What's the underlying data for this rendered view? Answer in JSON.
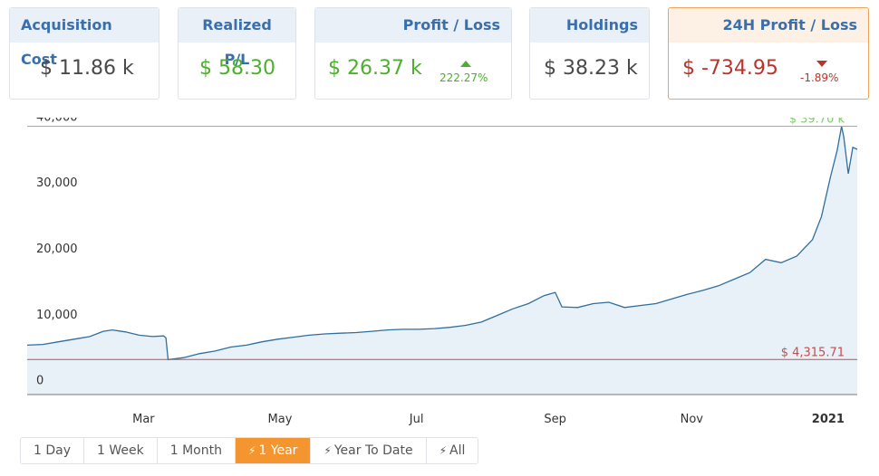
{
  "cards": [
    {
      "title": "Acquisition Cost",
      "value": "$ 11.86 k",
      "tone": "neutral"
    },
    {
      "title": "Realized P/L",
      "value": "$ 58.30",
      "tone": "pos"
    },
    {
      "title": "Profit / Loss",
      "value": "$ 26.37 k",
      "tone": "pos",
      "pct": "222.27%",
      "dir": "up"
    },
    {
      "title": "Holdings",
      "value": "$ 38.23 k",
      "tone": "neutral"
    },
    {
      "title": "24H Profit / Loss",
      "value": "$ -734.95",
      "tone": "neg",
      "pct": "-1.89%",
      "dir": "down",
      "active": true
    }
  ],
  "range_buttons": [
    {
      "label": "1 Day",
      "icon": ""
    },
    {
      "label": "1 Week",
      "icon": ""
    },
    {
      "label": "1 Month",
      "icon": ""
    },
    {
      "label": "1 Year",
      "icon": "bolt-icon",
      "active": true
    },
    {
      "label": "Year To Date",
      "icon": "bolt-icon"
    },
    {
      "label": "All",
      "icon": "bolt-icon"
    }
  ],
  "colors": {
    "line": "#2e6f9e",
    "fill": "#e8f0f8",
    "max": "#7cc96a",
    "min": "#c0504d"
  },
  "chart_data": {
    "type": "area",
    "y_ticks": [
      0,
      10000,
      20000,
      30000,
      40000
    ],
    "y_tick_labels": [
      "0",
      "10,000",
      "20,000",
      "30,000",
      "40,000"
    ],
    "ylim": [
      -1000,
      41000
    ],
    "x_ticks": [
      {
        "label": "Mar",
        "x": "2020-03-01"
      },
      {
        "label": "May",
        "x": "2020-05-01"
      },
      {
        "label": "Jul",
        "x": "2020-07-01"
      },
      {
        "label": "Sep",
        "x": "2020-09-01"
      },
      {
        "label": "Nov",
        "x": "2020-11-01"
      },
      {
        "label": "2021",
        "x": "2021-01-01",
        "bold": true
      }
    ],
    "xlim": [
      "2020-01-09",
      "2021-01-14"
    ],
    "max_line": {
      "value": 39700,
      "label": "$ 39.70 k"
    },
    "min_line": {
      "value": 4315.71,
      "label": "$ 4,315.71"
    },
    "series": [
      {
        "points": [
          [
            "2020-01-09",
            6500
          ],
          [
            "2020-01-16",
            6600
          ],
          [
            "2020-01-23",
            7000
          ],
          [
            "2020-01-30",
            7400
          ],
          [
            "2020-02-06",
            7800
          ],
          [
            "2020-02-12",
            8600
          ],
          [
            "2020-02-16",
            8800
          ],
          [
            "2020-02-22",
            8500
          ],
          [
            "2020-02-28",
            8000
          ],
          [
            "2020-03-05",
            7800
          ],
          [
            "2020-03-10",
            7900
          ],
          [
            "2020-03-11",
            7600
          ],
          [
            "2020-03-12",
            4300
          ],
          [
            "2020-03-19",
            4600
          ],
          [
            "2020-03-26",
            5200
          ],
          [
            "2020-04-02",
            5600
          ],
          [
            "2020-04-09",
            6200
          ],
          [
            "2020-04-16",
            6500
          ],
          [
            "2020-04-23",
            7000
          ],
          [
            "2020-04-30",
            7400
          ],
          [
            "2020-05-07",
            7700
          ],
          [
            "2020-05-14",
            8000
          ],
          [
            "2020-05-21",
            8200
          ],
          [
            "2020-05-28",
            8300
          ],
          [
            "2020-06-04",
            8400
          ],
          [
            "2020-06-11",
            8600
          ],
          [
            "2020-06-18",
            8800
          ],
          [
            "2020-06-25",
            8900
          ],
          [
            "2020-07-02",
            8900
          ],
          [
            "2020-07-09",
            9000
          ],
          [
            "2020-07-16",
            9200
          ],
          [
            "2020-07-23",
            9500
          ],
          [
            "2020-07-30",
            10000
          ],
          [
            "2020-08-06",
            11000
          ],
          [
            "2020-08-13",
            12000
          ],
          [
            "2020-08-20",
            12800
          ],
          [
            "2020-08-27",
            14000
          ],
          [
            "2020-09-01",
            14500
          ],
          [
            "2020-09-04",
            12300
          ],
          [
            "2020-09-11",
            12200
          ],
          [
            "2020-09-18",
            12800
          ],
          [
            "2020-09-25",
            13000
          ],
          [
            "2020-10-02",
            12200
          ],
          [
            "2020-10-09",
            12500
          ],
          [
            "2020-10-16",
            12800
          ],
          [
            "2020-10-23",
            13500
          ],
          [
            "2020-10-30",
            14200
          ],
          [
            "2020-11-06",
            14800
          ],
          [
            "2020-11-13",
            15500
          ],
          [
            "2020-11-20",
            16500
          ],
          [
            "2020-11-27",
            17500
          ],
          [
            "2020-12-04",
            19500
          ],
          [
            "2020-12-11",
            19000
          ],
          [
            "2020-12-18",
            20000
          ],
          [
            "2020-12-25",
            22500
          ],
          [
            "2020-12-29",
            26000
          ],
          [
            "2021-01-02",
            32000
          ],
          [
            "2021-01-05",
            36000
          ],
          [
            "2021-01-07",
            39700
          ],
          [
            "2021-01-08",
            38000
          ],
          [
            "2021-01-10",
            32500
          ],
          [
            "2021-01-12",
            36500
          ],
          [
            "2021-01-14",
            36200
          ]
        ]
      }
    ]
  }
}
